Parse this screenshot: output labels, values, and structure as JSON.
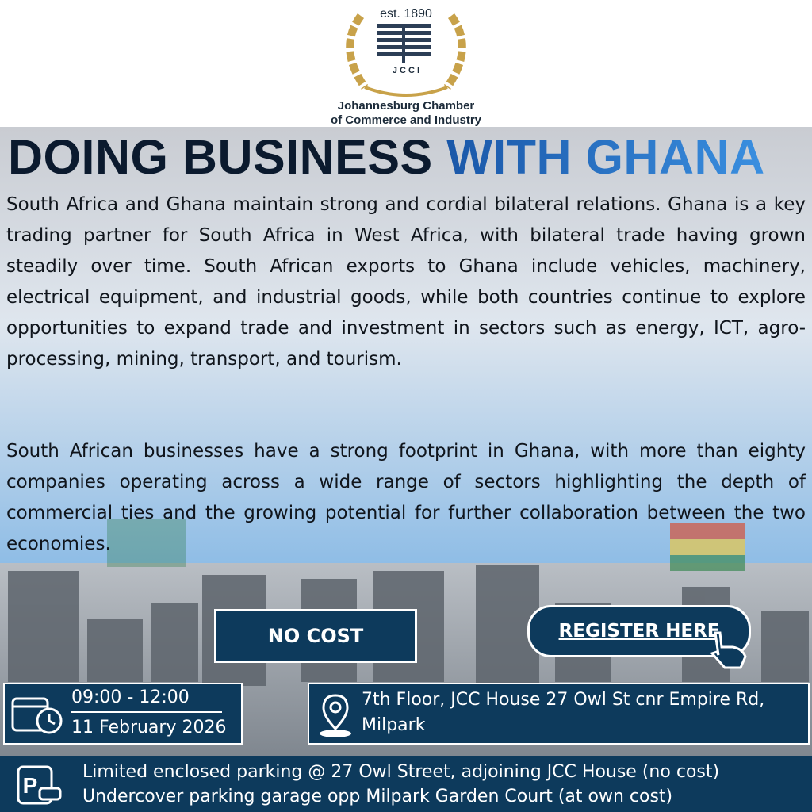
{
  "header": {
    "established": "est. 1890",
    "logo_text": "J C C I",
    "organization": [
      "Johannesburg Chamber",
      "of Commerce and Industry"
    ]
  },
  "title": {
    "part1": "DOING BUSINESS",
    "part2": "WITH GHANA"
  },
  "body": {
    "paragraphs": [
      "South Africa and Ghana maintain strong and cordial bilateral relations. Ghana is a key trading partner for South Africa in West Africa, with bilateral trade having grown steadily over time. South African exports to Ghana include vehicles, machinery, electrical equipment, and industrial goods, while both countries continue to explore opportunities to expand trade and investment in sectors such as energy, ICT, agro-processing, mining, transport, and tourism.",
      "South African businesses have a strong footprint in Ghana, with more than eighty companies operating across a wide range of sectors highlighting the depth of commercial ties and the growing potential for further collaboration between the two economies."
    ]
  },
  "buttons": {
    "no_cost": "NO COST",
    "register": "REGISTER HERE"
  },
  "event": {
    "time": "09:00 - 12:00",
    "date": "11 February 2026",
    "venue": "7th Floor, JCC House 27 Owl St cnr Empire Rd, Milpark"
  },
  "parking": {
    "lines": [
      "Limited enclosed parking @ 27 Owl Street, adjoining JCC House (no cost)",
      "Undercover parking garage opp Milpark Garden Court (at own cost)"
    ]
  }
}
